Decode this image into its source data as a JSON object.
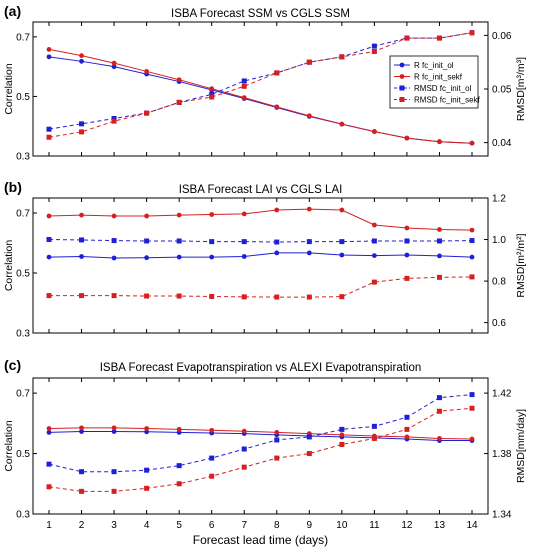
{
  "chart_data": [
    {
      "type": "line",
      "panel_label": "(a)",
      "title": "ISBA Forecast SSM vs CGLS SSM",
      "xlabel": "",
      "ylabel": "Correlation",
      "ylabel_right": "RMSD[m³/m³]",
      "x": [
        1,
        2,
        3,
        4,
        5,
        6,
        7,
        8,
        9,
        10,
        11,
        12,
        13,
        14
      ],
      "ylim": [
        0.3,
        0.75
      ],
      "yticks": [
        0.3,
        0.5,
        0.7
      ],
      "ytick_labels": [
        "0.3",
        "0.5",
        "0.7"
      ],
      "ylim_right": [
        0.0375,
        0.0625
      ],
      "yticks_right": [
        0.04,
        0.05,
        0.06
      ],
      "ytick_labels_right": [
        "0.04",
        "0.05",
        "0.06"
      ],
      "legend": "upper-right",
      "series": [
        {
          "name": "R fc_init_ol",
          "axis": "left",
          "color": "#1f1fd6",
          "marker": "circle",
          "dash": "solid",
          "values": [
            0.633,
            0.618,
            0.6,
            0.575,
            0.55,
            0.522,
            0.493,
            0.463,
            0.433,
            0.407,
            0.382,
            0.36,
            0.348,
            0.343
          ]
        },
        {
          "name": "R fc_init_sekf",
          "axis": "left",
          "color": "#d62020",
          "marker": "circle",
          "dash": "solid",
          "values": [
            0.658,
            0.637,
            0.612,
            0.584,
            0.556,
            0.526,
            0.496,
            0.465,
            0.435,
            0.407,
            0.382,
            0.36,
            0.348,
            0.343
          ]
        },
        {
          "name": "RMSD fc_init_ol",
          "axis": "right",
          "color": "#1f1fd6",
          "marker": "square",
          "dash": "dashed",
          "values": [
            0.0425,
            0.0435,
            0.0445,
            0.0455,
            0.0475,
            0.049,
            0.0515,
            0.053,
            0.055,
            0.056,
            0.058,
            0.0595,
            0.0595,
            0.0605
          ]
        },
        {
          "name": "RMSD fc_init_sekf",
          "axis": "right",
          "color": "#d62020",
          "marker": "square",
          "dash": "dashed",
          "values": [
            0.041,
            0.042,
            0.044,
            0.0455,
            0.0475,
            0.0485,
            0.0505,
            0.053,
            0.055,
            0.056,
            0.057,
            0.0595,
            0.0595,
            0.0605
          ]
        }
      ]
    },
    {
      "type": "line",
      "panel_label": "(b)",
      "title": "ISBA Forecast LAI vs CGLS LAI",
      "xlabel": "",
      "ylabel": "Correlation",
      "ylabel_right": "RMSD[m²/m²]",
      "x": [
        1,
        2,
        3,
        4,
        5,
        6,
        7,
        8,
        9,
        10,
        11,
        12,
        13,
        14
      ],
      "ylim": [
        0.3,
        0.75
      ],
      "yticks": [
        0.3,
        0.5,
        0.7
      ],
      "ytick_labels": [
        "0.3",
        "0.5",
        "0.7"
      ],
      "ylim_right": [
        0.55,
        1.2
      ],
      "yticks_right": [
        0.6,
        0.8,
        1.0,
        1.2
      ],
      "ytick_labels_right": [
        "0.6",
        "0.8",
        "1.0",
        "1.2"
      ],
      "series": [
        {
          "name": "R fc_init_ol",
          "axis": "left",
          "color": "#1f1fd6",
          "marker": "circle",
          "dash": "solid",
          "values": [
            0.553,
            0.555,
            0.55,
            0.551,
            0.553,
            0.553,
            0.555,
            0.567,
            0.567,
            0.56,
            0.558,
            0.56,
            0.557,
            0.553
          ]
        },
        {
          "name": "R fc_init_sekf",
          "axis": "left",
          "color": "#d62020",
          "marker": "circle",
          "dash": "solid",
          "values": [
            0.69,
            0.693,
            0.69,
            0.69,
            0.693,
            0.695,
            0.697,
            0.71,
            0.713,
            0.71,
            0.66,
            0.65,
            0.645,
            0.643
          ]
        },
        {
          "name": "RMSD fc_init_ol",
          "axis": "right",
          "color": "#1f1fd6",
          "marker": "square",
          "dash": "dashed",
          "values": [
            1.0,
            0.998,
            0.995,
            0.993,
            0.993,
            0.99,
            0.99,
            0.988,
            0.99,
            0.99,
            0.993,
            0.993,
            0.993,
            0.995
          ]
        },
        {
          "name": "RMSD fc_init_sekf",
          "axis": "right",
          "color": "#d62020",
          "marker": "square",
          "dash": "dashed",
          "values": [
            0.73,
            0.73,
            0.73,
            0.728,
            0.728,
            0.726,
            0.724,
            0.723,
            0.723,
            0.725,
            0.795,
            0.813,
            0.818,
            0.82
          ]
        }
      ]
    },
    {
      "type": "line",
      "panel_label": "(c)",
      "title": "ISBA Forecast Evapotranspiration vs ALEXI Evapotranspiration",
      "xlabel": "Forecast lead time (days)",
      "ylabel": "Correlation",
      "ylabel_right": "RMSD[mm/day]",
      "x": [
        1,
        2,
        3,
        4,
        5,
        6,
        7,
        8,
        9,
        10,
        11,
        12,
        13,
        14
      ],
      "ylim": [
        0.3,
        0.75
      ],
      "yticks": [
        0.3,
        0.5,
        0.7
      ],
      "ytick_labels": [
        "0.3",
        "0.5",
        "0.7"
      ],
      "ylim_right": [
        1.34,
        1.43
      ],
      "yticks_right": [
        1.34,
        1.38,
        1.42
      ],
      "ytick_labels_right": [
        "1.34",
        "1.38",
        "1.42"
      ],
      "series": [
        {
          "name": "R fc_init_ol",
          "axis": "left",
          "color": "#1f1fd6",
          "marker": "circle",
          "dash": "solid",
          "values": [
            0.57,
            0.573,
            0.573,
            0.572,
            0.57,
            0.568,
            0.566,
            0.562,
            0.558,
            0.555,
            0.552,
            0.548,
            0.543,
            0.543
          ]
        },
        {
          "name": "R fc_init_sekf",
          "axis": "left",
          "color": "#d62020",
          "marker": "circle",
          "dash": "solid",
          "values": [
            0.583,
            0.585,
            0.585,
            0.583,
            0.58,
            0.577,
            0.574,
            0.57,
            0.566,
            0.562,
            0.558,
            0.555,
            0.55,
            0.548
          ]
        },
        {
          "name": "RMSD fc_init_ol",
          "axis": "right",
          "color": "#1f1fd6",
          "marker": "square",
          "dash": "dashed",
          "values": [
            1.373,
            1.368,
            1.368,
            1.369,
            1.372,
            1.377,
            1.383,
            1.389,
            1.391,
            1.396,
            1.398,
            1.404,
            1.417,
            1.419
          ]
        },
        {
          "name": "RMSD fc_init_sekf",
          "axis": "right",
          "color": "#d62020",
          "marker": "square",
          "dash": "dashed",
          "values": [
            1.358,
            1.355,
            1.355,
            1.357,
            1.36,
            1.365,
            1.371,
            1.377,
            1.38,
            1.386,
            1.39,
            1.396,
            1.408,
            1.41
          ]
        }
      ]
    }
  ]
}
